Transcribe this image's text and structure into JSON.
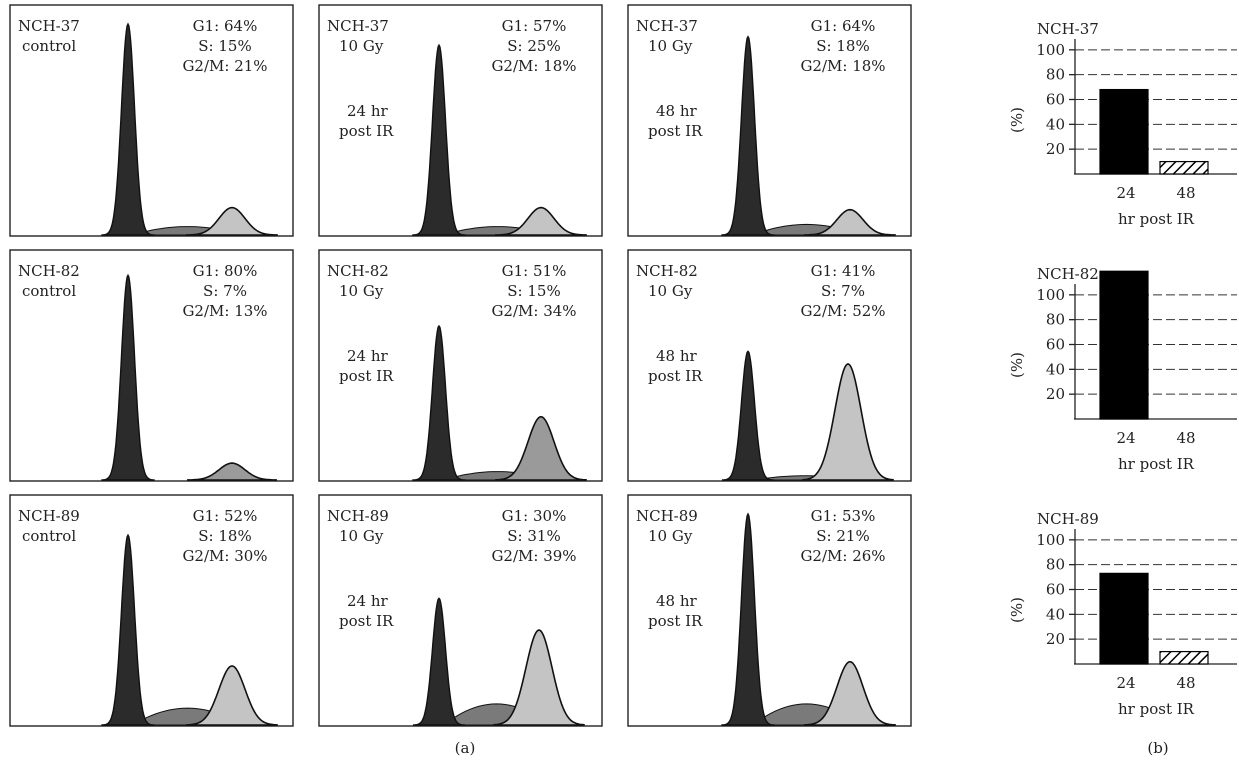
{
  "figure": {
    "label_a": "(a)",
    "label_b": "(b)"
  },
  "colors": {
    "g1_peak": "#2b2b2b",
    "s_phase": "#7a7a7a",
    "g2m_light": "#c4c4c4",
    "g2m_dark": "#9a9a9a",
    "bar_24": "#000000",
    "outline": "#111111"
  },
  "histograms": [
    {
      "id": "nch37-control",
      "row": 0,
      "col": 0,
      "line1": "NCH-37",
      "line2": "control",
      "time1": "",
      "time2": "",
      "g1": "G1: 64%",
      "s": "S: 15%",
      "g2m": "G2/M: 21%",
      "g1_height": 1.0,
      "s_height": 0.04,
      "g2m_height": 0.13,
      "g2m_shade": "light"
    },
    {
      "id": "nch37-24hr",
      "row": 0,
      "col": 1,
      "line1": "NCH-37",
      "line2": "10 Gy",
      "time1": "24 hr",
      "time2": "post IR",
      "g1": "G1: 57%",
      "s": "S: 25%",
      "g2m": "G2/M: 18%",
      "g1_height": 0.9,
      "s_height": 0.04,
      "g2m_height": 0.13,
      "g2m_shade": "light"
    },
    {
      "id": "nch37-48hr",
      "row": 0,
      "col": 2,
      "line1": "NCH-37",
      "line2": "10 Gy",
      "time1": "48 hr",
      "time2": "post IR",
      "g1": "G1: 64%",
      "s": "S: 18%",
      "g2m": "G2/M: 18%",
      "g1_height": 0.94,
      "s_height": 0.05,
      "g2m_height": 0.12,
      "g2m_shade": "light"
    },
    {
      "id": "nch82-control",
      "row": 1,
      "col": 0,
      "line1": "NCH-82",
      "line2": "control",
      "time1": "",
      "time2": "",
      "g1": "G1: 80%",
      "s": "S: 7%",
      "g2m": "G2/M: 13%",
      "g1_height": 0.97,
      "s_height": 0.0,
      "g2m_height": 0.08,
      "g2m_shade": "dark"
    },
    {
      "id": "nch82-24hr",
      "row": 1,
      "col": 1,
      "line1": "NCH-82",
      "line2": "10 Gy",
      "time1": "24 hr",
      "time2": "post IR",
      "g1": "G1: 51%",
      "s": "S: 15%",
      "g2m": "G2/M: 34%",
      "g1_height": 0.73,
      "s_height": 0.04,
      "g2m_height": 0.3,
      "g2m_shade": "dark"
    },
    {
      "id": "nch82-48hr",
      "row": 1,
      "col": 2,
      "line1": "NCH-82",
      "line2": "10 Gy",
      "time1": "48 hr",
      "time2": "post IR",
      "g1": "G1: 41%",
      "s": "S: 7%",
      "g2m": "G2/M: 52%",
      "g1_height": 0.61,
      "s_height": 0.02,
      "g2m_height": 0.55,
      "g2m_shade": "light"
    },
    {
      "id": "nch89-control",
      "row": 2,
      "col": 0,
      "line1": "NCH-89",
      "line2": "control",
      "time1": "",
      "time2": "",
      "g1": "G1: 52%",
      "s": "S: 18%",
      "g2m": "G2/M: 30%",
      "g1_height": 0.9,
      "s_height": 0.08,
      "g2m_height": 0.28,
      "g2m_shade": "light"
    },
    {
      "id": "nch89-24hr",
      "row": 2,
      "col": 1,
      "line1": "NCH-89",
      "line2": "10 Gy",
      "time1": "24 hr",
      "time2": "post IR",
      "g1": "G1: 30%",
      "s": "S: 31%",
      "g2m": "G2/M: 39%",
      "g1_height": 0.6,
      "s_height": 0.1,
      "g2m_height": 0.45,
      "g2m_shade": "light"
    },
    {
      "id": "nch89-48hr",
      "row": 2,
      "col": 2,
      "line1": "NCH-89",
      "line2": "10 Gy",
      "time1": "48 hr",
      "time2": "post IR",
      "g1": "G1: 53%",
      "s": "S: 21%",
      "g2m": "G2/M: 26%",
      "g1_height": 1.0,
      "s_height": 0.1,
      "g2m_height": 0.3,
      "g2m_shade": "light"
    }
  ],
  "bar_charts": [
    {
      "id": "bar-nch37",
      "title": "NCH-37"
    },
    {
      "id": "bar-nch82",
      "title": "NCH-82"
    },
    {
      "id": "bar-nch89",
      "title": "NCH-89"
    }
  ],
  "bar_axis": {
    "ylabel": "(%)",
    "xlabel": "hr post IR",
    "yticks": [
      20,
      40,
      60,
      80,
      100
    ],
    "ylim": [
      0,
      120
    ]
  },
  "chart_data": [
    {
      "type": "bar",
      "title": "NCH-37",
      "categories": [
        "24",
        "48"
      ],
      "values": [
        68,
        10
      ],
      "xlabel": "hr post IR",
      "ylabel": "(%)",
      "ylim": [
        0,
        120
      ],
      "yticks": [
        20,
        40,
        60,
        80,
        100
      ],
      "bar_styles": [
        "solid-black",
        "hatched"
      ],
      "grid": "dashed-horizontal"
    },
    {
      "type": "bar",
      "title": "NCH-82",
      "categories": [
        "24",
        "48"
      ],
      "values": [
        119,
        0
      ],
      "xlabel": "hr post IR",
      "ylabel": "(%)",
      "ylim": [
        0,
        120
      ],
      "yticks": [
        20,
        40,
        60,
        80,
        100
      ],
      "bar_styles": [
        "solid-black",
        "hatched"
      ],
      "grid": "dashed-horizontal"
    },
    {
      "type": "bar",
      "title": "NCH-89",
      "categories": [
        "24",
        "48"
      ],
      "values": [
        73,
        10
      ],
      "xlabel": "hr post IR",
      "ylabel": "(%)",
      "ylim": [
        0,
        120
      ],
      "yticks": [
        20,
        40,
        60,
        80,
        100
      ],
      "bar_styles": [
        "solid-black",
        "hatched"
      ],
      "grid": "dashed-horizontal"
    }
  ]
}
